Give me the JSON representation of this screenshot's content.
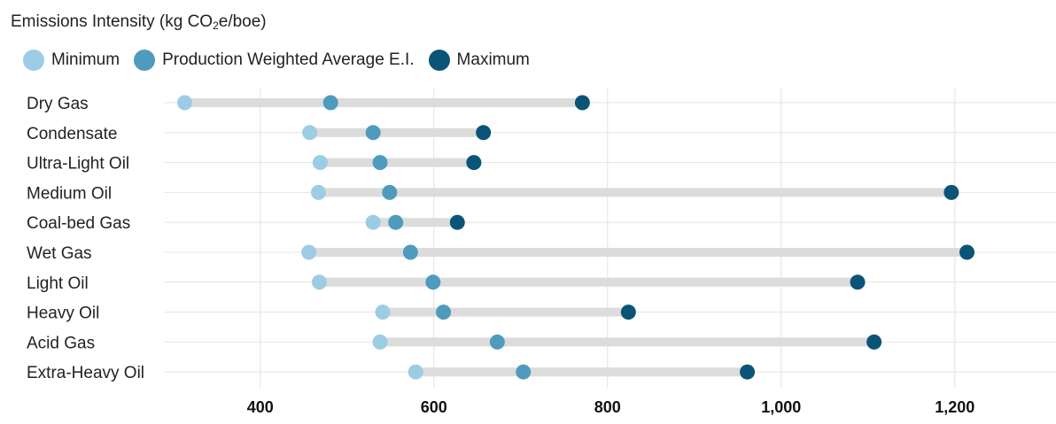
{
  "chart_data": {
    "type": "dumbbell",
    "title_main": "Emissions Intensity (kg CO",
    "title_sub": "2",
    "title_tail": "e/boe)",
    "legend": [
      {
        "label": "Minimum",
        "color": "#9ccde4"
      },
      {
        "label": "Production Weighted Average E.I.",
        "color": "#4f9bbd"
      },
      {
        "label": "Maximum",
        "color": "#0a5577"
      }
    ],
    "xlim": [
      290,
      1310
    ],
    "x_ticks": [
      400,
      600,
      800,
      1000,
      1200
    ],
    "x_tick_labels": [
      "400",
      "600",
      "800",
      "1,000",
      "1,200"
    ],
    "grid": true,
    "categories": [
      "Dry Gas",
      "Condensate",
      "Ultra-Light Oil",
      "Medium Oil",
      "Coal-bed Gas",
      "Wet Gas",
      "Light Oil",
      "Heavy Oil",
      "Acid Gas",
      "Extra-Heavy Oil"
    ],
    "series": [
      {
        "name": "Minimum",
        "values": [
          313,
          457,
          469,
          467,
          530,
          456,
          468,
          541,
          538,
          579
        ]
      },
      {
        "name": "Production Weighted Average E.I.",
        "values": [
          481,
          530,
          538,
          549,
          556,
          573,
          599,
          611,
          673,
          703
        ]
      },
      {
        "name": "Maximum",
        "values": [
          771,
          657,
          646,
          1196,
          627,
          1214,
          1088,
          824,
          1107,
          961
        ]
      }
    ]
  }
}
